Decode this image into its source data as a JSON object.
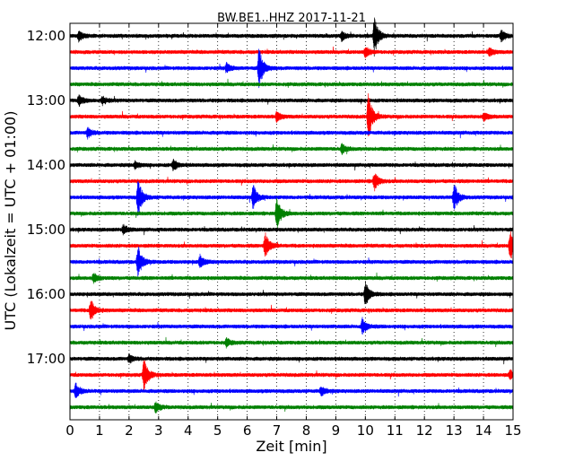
{
  "chart_data": {
    "type": "line",
    "title": "BW.BE1..HHZ 2017-11-21",
    "xlabel": "Zeit  [min]",
    "ylabel": "UTC (Lokalzeit = UTC + 01:00)",
    "xlim": [
      0,
      15
    ],
    "x_ticks": [
      "0",
      "1",
      "2",
      "3",
      "4",
      "5",
      "6",
      "7",
      "8",
      "9",
      "10",
      "11",
      "12",
      "13",
      "14",
      "15"
    ],
    "y_ticks": [
      "12:00",
      "13:00",
      "14:00",
      "15:00",
      "16:00",
      "17:00"
    ],
    "grid": "vertical dotted",
    "series_colors": [
      "#000000",
      "#ff0000",
      "#0000ff",
      "#008000"
    ],
    "series": [
      {
        "start": "12:00",
        "events": [
          {
            "x": 0.3,
            "amp": 0.3
          },
          {
            "x": 9.2,
            "amp": 0.3
          },
          {
            "x": 10.3,
            "amp": 1.2
          },
          {
            "x": 14.6,
            "amp": 0.35
          }
        ]
      },
      {
        "start": "12:15",
        "events": [
          {
            "x": 10.0,
            "amp": 0.35
          },
          {
            "x": 14.2,
            "amp": 0.25
          }
        ]
      },
      {
        "start": "12:30",
        "events": [
          {
            "x": 5.3,
            "amp": 0.3
          },
          {
            "x": 6.4,
            "amp": 1.3
          }
        ]
      },
      {
        "start": "12:45",
        "events": []
      },
      {
        "start": "13:00",
        "events": [
          {
            "x": 0.3,
            "amp": 0.35
          },
          {
            "x": 1.1,
            "amp": 0.25
          }
        ]
      },
      {
        "start": "13:15",
        "events": [
          {
            "x": 7.0,
            "amp": 0.3
          },
          {
            "x": 10.1,
            "amp": 1.5
          },
          {
            "x": 14.0,
            "amp": 0.25
          }
        ]
      },
      {
        "start": "13:30",
        "events": [
          {
            "x": 0.6,
            "amp": 0.3
          }
        ]
      },
      {
        "start": "13:45",
        "events": [
          {
            "x": 9.2,
            "amp": 0.3
          }
        ]
      },
      {
        "start": "14:00",
        "events": [
          {
            "x": 2.2,
            "amp": 0.25
          },
          {
            "x": 3.5,
            "amp": 0.35
          }
        ]
      },
      {
        "start": "14:15",
        "events": [
          {
            "x": 10.3,
            "amp": 0.6
          }
        ]
      },
      {
        "start": "14:30",
        "events": [
          {
            "x": 2.3,
            "amp": 1.2
          },
          {
            "x": 6.2,
            "amp": 0.8
          },
          {
            "x": 13.0,
            "amp": 0.9
          }
        ]
      },
      {
        "start": "14:45",
        "events": [
          {
            "x": 7.0,
            "amp": 1.1
          }
        ]
      },
      {
        "start": "15:00",
        "events": [
          {
            "x": 1.8,
            "amp": 0.3
          }
        ]
      },
      {
        "start": "15:15",
        "events": [
          {
            "x": 6.6,
            "amp": 0.9
          },
          {
            "x": 14.9,
            "amp": 1.0
          }
        ]
      },
      {
        "start": "15:30",
        "events": [
          {
            "x": 2.3,
            "amp": 1.0
          },
          {
            "x": 4.4,
            "amp": 0.4
          }
        ]
      },
      {
        "start": "15:45",
        "events": [
          {
            "x": 0.8,
            "amp": 0.3
          }
        ]
      },
      {
        "start": "16:00",
        "events": [
          {
            "x": 10.0,
            "amp": 0.8
          }
        ]
      },
      {
        "start": "16:15",
        "events": [
          {
            "x": 0.7,
            "amp": 0.7
          }
        ]
      },
      {
        "start": "16:30",
        "events": [
          {
            "x": 9.9,
            "amp": 0.5
          }
        ]
      },
      {
        "start": "16:45",
        "events": [
          {
            "x": 5.3,
            "amp": 0.25
          }
        ]
      },
      {
        "start": "17:00",
        "events": [
          {
            "x": 2.0,
            "amp": 0.25
          }
        ]
      },
      {
        "start": "17:15",
        "events": [
          {
            "x": 2.5,
            "amp": 1.1
          },
          {
            "x": 14.9,
            "amp": 0.3
          }
        ]
      },
      {
        "start": "17:30",
        "events": [
          {
            "x": 0.2,
            "amp": 0.5
          },
          {
            "x": 8.5,
            "amp": 0.3
          }
        ]
      },
      {
        "start": "17:45",
        "events": [
          {
            "x": 2.9,
            "amp": 0.35
          }
        ]
      }
    ]
  }
}
